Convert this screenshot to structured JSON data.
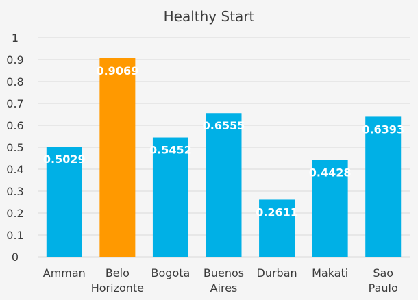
{
  "chart_data": {
    "type": "bar",
    "title": "Healthy Start",
    "xlabel": "",
    "ylabel": "",
    "ylim": [
      0,
      1
    ],
    "yticks": [
      "0",
      "0.1",
      "0.2",
      "0.3",
      "0.4",
      "0.5",
      "0.6",
      "0.7",
      "0.8",
      "0.9",
      "1"
    ],
    "grid": true,
    "categories": [
      [
        "Amman"
      ],
      [
        "Belo",
        "Horizonte"
      ],
      [
        "Bogota"
      ],
      [
        "Buenos",
        "Aires"
      ],
      [
        "Durban"
      ],
      [
        "Makati"
      ],
      [
        "Sao",
        "Paulo"
      ]
    ],
    "values": [
      0.5029,
      0.9069,
      0.5452,
      0.6555,
      0.2611,
      0.4428,
      0.6393
    ],
    "data_labels": [
      "0.5029",
      "0.9069",
      "0.5452",
      "0.6555",
      "0.2611",
      "0.4428",
      "0.6393"
    ],
    "bar_colors": [
      "#00b0e6",
      "#ff9900",
      "#00b0e6",
      "#00b0e6",
      "#00b0e6",
      "#00b0e6",
      "#00b0e6"
    ]
  }
}
